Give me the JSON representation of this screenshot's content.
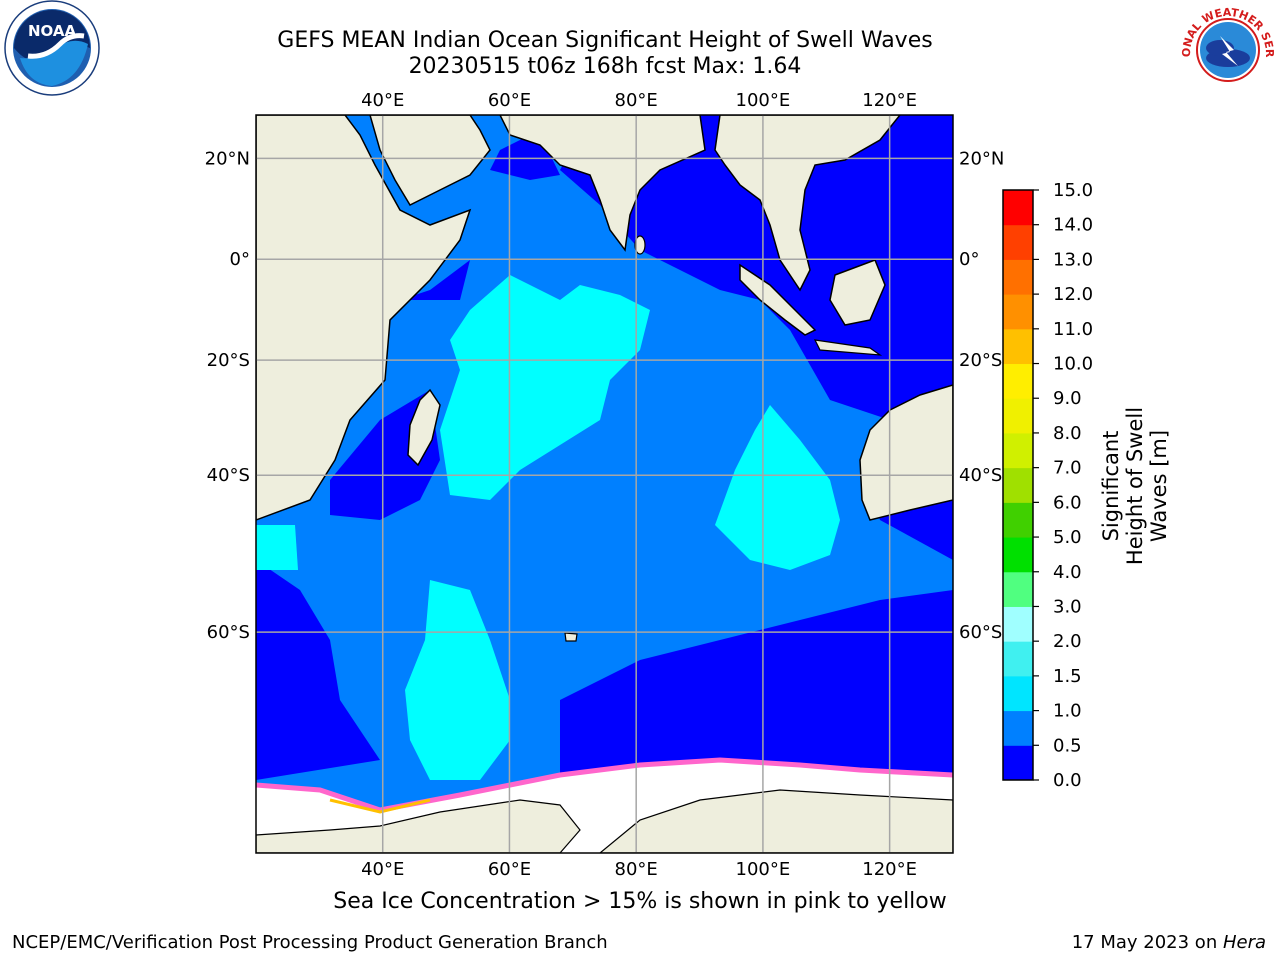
{
  "title": {
    "line1": "GEFS MEAN Indian Ocean Significant Height of Swell Waves",
    "line2": "20230515 t06z 168h fcst   Max: 1.64"
  },
  "map": {
    "lon_labels": [
      "40°E",
      "60°E",
      "80°E",
      "100°E",
      "120°E"
    ],
    "lat_labels": [
      "20°N",
      "0°",
      "20°S",
      "40°S",
      "60°S"
    ],
    "lon_range": [
      20,
      130
    ],
    "lat_range": [
      -76,
      28
    ],
    "gridline_lons": [
      40,
      60,
      80,
      100,
      120
    ],
    "gridline_lats": [
      20,
      0,
      -20,
      -40,
      -60
    ]
  },
  "colorbar": {
    "title": "Significant Height of Swell Waves [m]",
    "ticks": [
      "0.0",
      "0.5",
      "1.0",
      "1.5",
      "2.0",
      "3.0",
      "4.0",
      "5.0",
      "6.0",
      "7.0",
      "8.0",
      "9.0",
      "10.0",
      "11.0",
      "12.0",
      "13.0",
      "14.0",
      "15.0"
    ],
    "colors": [
      "#0000ff",
      "#0080ff",
      "#00e5ff",
      "#40f0f0",
      "#a0ffff",
      "#50ff80",
      "#00e000",
      "#40d000",
      "#a0e000",
      "#d0f000",
      "#f0f000",
      "#ffee00",
      "#ffc000",
      "#ff9000",
      "#ff7000",
      "#ff4000",
      "#ff0000"
    ]
  },
  "legend_colors": {
    "land": "#eeeedd",
    "ice": "#ffffff",
    "ice_edge": "#ff66cc"
  },
  "caption": "Sea Ice Concentration > 15% is shown in pink to yellow",
  "footer": {
    "left": "NCEP/EMC/Verification Post Processing Product Generation Branch",
    "right_prefix": "17 May 2023 on ",
    "right_host": "Hera"
  },
  "logos": {
    "left": "NOAA",
    "right": "NATIONAL WEATHER SERVICE"
  }
}
